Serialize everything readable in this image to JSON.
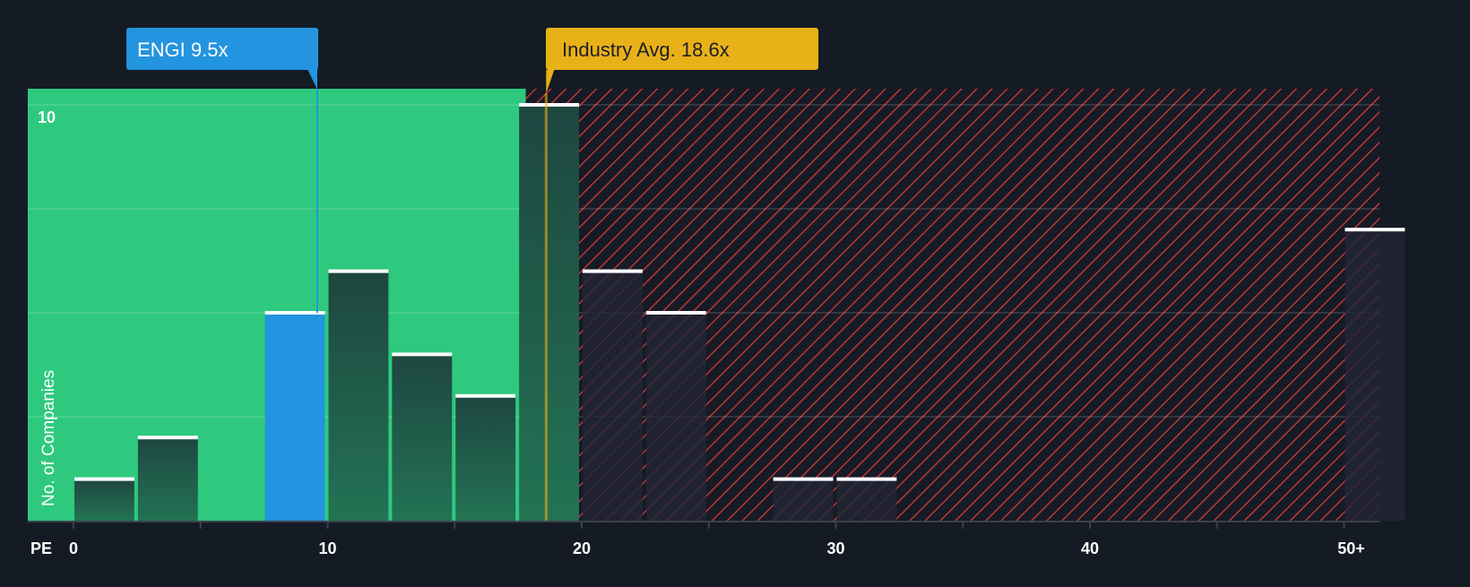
{
  "chart_data": {
    "type": "bar",
    "title": "",
    "xlabel": "PE",
    "ylabel": "No. of Companies",
    "bin_width": 2.5,
    "bins_start": [
      0,
      2.5,
      5,
      7.5,
      10,
      12.5,
      15,
      17.5,
      20,
      22.5,
      25,
      27.5,
      30,
      32.5,
      35,
      37.5,
      40,
      42.5,
      45,
      47.5,
      50
    ],
    "values": [
      1,
      2,
      0,
      5,
      6,
      4,
      3,
      10,
      6,
      5,
      0,
      1,
      1,
      0,
      0,
      0,
      0,
      0,
      0,
      0,
      7
    ],
    "highlight_bin": 3,
    "x_ticks": [
      0,
      10,
      20,
      30,
      40,
      50
    ],
    "x_tick_labels": [
      "0",
      "10",
      "20",
      "30",
      "40",
      "50+"
    ],
    "y_tick_labels_shown": [
      {
        "value": 10,
        "label": "10"
      }
    ],
    "y_gridlines": [
      2.5,
      5,
      7.5,
      10
    ],
    "ylim": [
      0,
      10.4
    ],
    "xlim": [
      -1.8,
      51.4
    ],
    "fair_zone_end": 17.8,
    "company": {
      "label": "ENGI 9.5x",
      "value": 9.5
    },
    "industry": {
      "label": "Industry Avg. 18.6x",
      "value": 18.6
    }
  },
  "colors": {
    "background": "#151b24",
    "fair_zone": "#2ec97f",
    "company": "#2394df",
    "industry": "#e9b118",
    "hatch": "#e0393e"
  }
}
